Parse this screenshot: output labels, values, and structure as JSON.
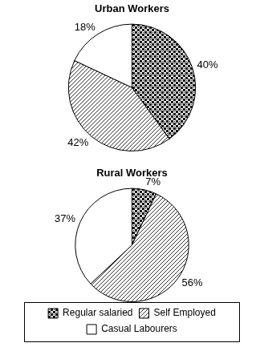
{
  "chart_data": [
    {
      "type": "pie",
      "title": "Urban Workers",
      "categories": [
        "Regular salaried",
        "Self Employed",
        "Casual Labourers"
      ],
      "values": [
        40,
        42,
        18
      ],
      "value_labels": [
        "40%",
        "42%",
        "18%"
      ],
      "data_labels": true,
      "colors": [
        "#111111",
        "#333333",
        "#ffffff"
      ]
    },
    {
      "type": "pie",
      "title": "Rural Workers",
      "categories": [
        "Regular salaried",
        "Self Employed",
        "Casual Labourers"
      ],
      "values": [
        7,
        56,
        37
      ],
      "value_labels": [
        "7%",
        "56%",
        "37%"
      ],
      "data_labels": true,
      "colors": [
        "#111111",
        "#333333",
        "#ffffff"
      ],
      "legend": "bottom"
    }
  ]
}
